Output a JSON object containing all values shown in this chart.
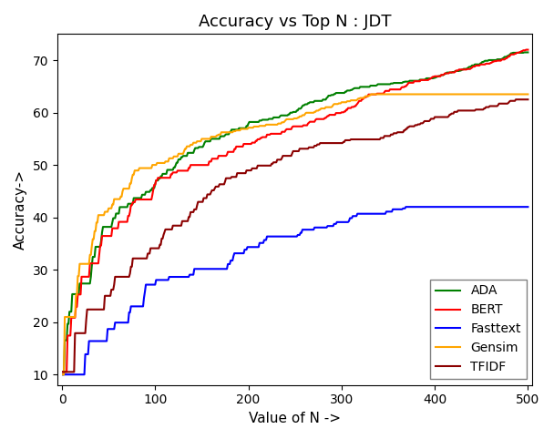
{
  "title": "Accuracy vs Top N : JDT",
  "xlabel": "Value of N ->",
  "ylabel": "Accuracy->",
  "xlim": [
    -5,
    505
  ],
  "ylim": [
    8,
    75
  ],
  "legend_loc": "lower right",
  "N_max": 500,
  "curves": {
    "ADA": {
      "color": "green",
      "a": 61.5,
      "b": 0.055,
      "start": 10.0,
      "end": 71.5
    },
    "BERT": {
      "color": "red",
      "a": 63.0,
      "b": 0.06,
      "start": 10.5,
      "end": 72.0
    },
    "Fasttext": {
      "color": "blue",
      "a": 32.0,
      "b": 0.03,
      "start": 10.0,
      "end": 42.0
    },
    "Gensim": {
      "color": "orange",
      "a": 54.0,
      "b": 0.12,
      "start": 10.0,
      "end": 63.5
    },
    "TFIDF": {
      "color": "darkred",
      "a": 52.5,
      "b": 0.09,
      "start": 10.5,
      "end": 62.5
    }
  },
  "figsize": [
    6.08,
    4.82
  ],
  "dpi": 100
}
